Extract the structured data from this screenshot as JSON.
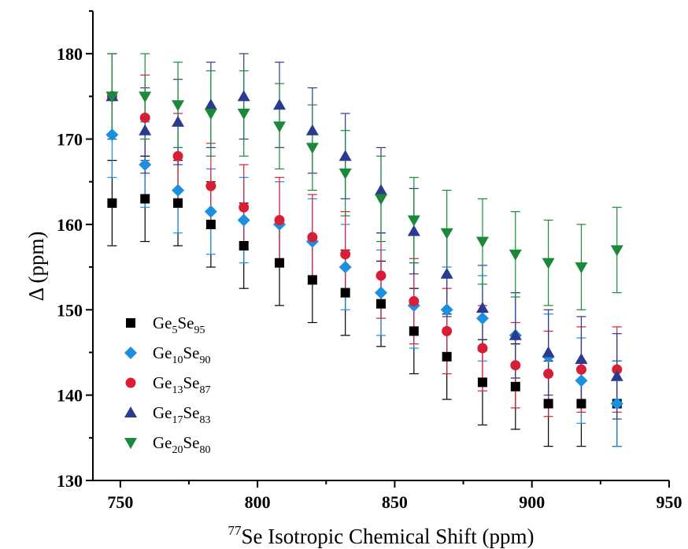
{
  "chart_data": {
    "type": "scatter",
    "xlabel": "Se Isotropic Chemical Shift (ppm)",
    "xlabel_sup": "77",
    "ylabel": "Δ (ppm)",
    "xlim": [
      740,
      950
    ],
    "ylim": [
      130,
      185
    ],
    "xticks": [
      750,
      800,
      850,
      900,
      950
    ],
    "yticks": [
      130,
      140,
      150,
      160,
      170,
      180
    ],
    "x_minor_step": 25,
    "y_minor_step": 5,
    "legend_position": "lower-left",
    "grid": false,
    "series": [
      {
        "name": "Ge5Se95",
        "label_parts": [
          [
            "Ge",
            ""
          ],
          [
            "5",
            "sub"
          ],
          [
            "Se",
            ""
          ],
          [
            "95",
            "sub"
          ]
        ],
        "marker": "square",
        "color": "#000000",
        "x": [
          747,
          759,
          771,
          783,
          795,
          808,
          820,
          832,
          845,
          857,
          869,
          882,
          894,
          906,
          918,
          931
        ],
        "y": [
          162.5,
          163,
          162.5,
          160,
          157.5,
          155.5,
          153.5,
          152,
          150.7,
          147.5,
          144.5,
          141.5,
          141,
          139,
          139,
          139
        ],
        "error": 5
      },
      {
        "name": "Ge10Se90",
        "label_parts": [
          [
            "Ge",
            ""
          ],
          [
            "10",
            "sub"
          ],
          [
            "Se",
            ""
          ],
          [
            "90",
            "sub"
          ]
        ],
        "marker": "diamond",
        "color": "#1b8fe0",
        "x": [
          747,
          759,
          771,
          783,
          795,
          808,
          820,
          832,
          845,
          857,
          869,
          882,
          894,
          906,
          918,
          931
        ],
        "y": [
          170.5,
          167,
          164,
          161.5,
          160.5,
          160,
          158,
          155,
          152,
          150.5,
          150,
          149,
          147,
          144.5,
          141.7,
          139
        ],
        "error": 5
      },
      {
        "name": "Ge13Se87",
        "label_parts": [
          [
            "Ge",
            ""
          ],
          [
            "13",
            "sub"
          ],
          [
            "Se",
            ""
          ],
          [
            "87",
            "sub"
          ]
        ],
        "marker": "circle",
        "color": "#d81e35",
        "x": [
          747,
          759,
          771,
          783,
          795,
          808,
          820,
          832,
          845,
          857,
          869,
          882,
          894,
          906,
          918,
          931
        ],
        "y": [
          175,
          172.5,
          168,
          164.5,
          162,
          160.5,
          158.5,
          156.5,
          154,
          151,
          147.5,
          145.5,
          143.5,
          142.5,
          143,
          143
        ],
        "error": 5
      },
      {
        "name": "Ge17Se83",
        "label_parts": [
          [
            "Ge",
            ""
          ],
          [
            "17",
            "sub"
          ],
          [
            "Se",
            ""
          ],
          [
            "83",
            "sub"
          ]
        ],
        "marker": "triangle-up",
        "color": "#2b3a8f",
        "x": [
          747,
          759,
          771,
          783,
          795,
          808,
          820,
          832,
          845,
          857,
          869,
          882,
          894,
          906,
          918,
          931
        ],
        "y": [
          175,
          171,
          172,
          174,
          175,
          174,
          171,
          168,
          164,
          159.2,
          154.2,
          150.2,
          147,
          145,
          144.2,
          142.2
        ],
        "error": 5
      },
      {
        "name": "Ge20Se80",
        "label_parts": [
          [
            "Ge",
            ""
          ],
          [
            "20",
            "sub"
          ],
          [
            "Se",
            ""
          ],
          [
            "80",
            "sub"
          ]
        ],
        "marker": "triangle-down",
        "color": "#1a8a3a",
        "x": [
          747,
          759,
          771,
          783,
          795,
          808,
          820,
          832,
          845,
          857,
          869,
          882,
          894,
          906,
          918,
          931
        ],
        "y": [
          175,
          175,
          174,
          173,
          173,
          171.5,
          169,
          166,
          163,
          160.5,
          159,
          158,
          156.5,
          155.5,
          155,
          157
        ],
        "error": 5
      }
    ]
  }
}
